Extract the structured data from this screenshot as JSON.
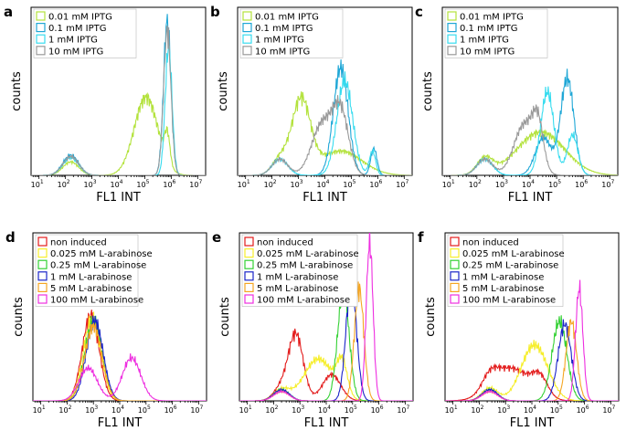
{
  "figure": {
    "colors": {
      "iptg_0.01": "#b3e23c",
      "iptg_0.1": "#1fa7d6",
      "iptg_1": "#37dcef",
      "iptg_10": "#9a9a9a",
      "ara_none": "#e31b1b",
      "ara_0.025": "#f6ee2b",
      "ara_0.25": "#34d134",
      "ara_1": "#1a24c8",
      "ara_5": "#f5a623",
      "ara_100": "#ee2ee0"
    }
  },
  "chart_data": [
    {
      "type": "line",
      "panel": "a",
      "title": "",
      "xlabel": "FL1 INT",
      "ylabel": "counts",
      "xscale": "log",
      "xlim_exp": [
        0.7,
        7.3
      ],
      "ylim": [
        0,
        125
      ],
      "xticks": [
        {
          "base": "10",
          "exp": "1"
        },
        {
          "base": "10",
          "exp": "2"
        },
        {
          "base": "10",
          "exp": "3"
        },
        {
          "base": "10",
          "exp": "4"
        },
        {
          "base": "10",
          "exp": "5"
        },
        {
          "base": "10",
          "exp": "6"
        },
        {
          "base": "10",
          "exp": "7"
        }
      ],
      "legend": [
        "0.01 mM IPTG",
        "0.1 mM IPTG",
        "1 mM IPTG",
        "10 mM IPTG"
      ],
      "series": [
        {
          "name": "0.01 mM IPTG",
          "color_key": "iptg_0.01",
          "peaks": [
            {
              "mu": 2.2,
              "sigma": 0.3,
              "amp": 10
            },
            {
              "mu": 5.05,
              "sigma": 0.45,
              "amp": 58
            },
            {
              "mu": 5.85,
              "sigma": 0.1,
              "amp": 22
            }
          ]
        },
        {
          "name": "0.1 mM IPTG",
          "color_key": "iptg_0.1",
          "peaks": [
            {
              "mu": 2.2,
              "sigma": 0.3,
              "amp": 15
            },
            {
              "mu": 5.85,
              "sigma": 0.14,
              "amp": 115
            }
          ]
        },
        {
          "name": "1 mM IPTG",
          "color_key": "iptg_1",
          "peaks": [
            {
              "mu": 2.2,
              "sigma": 0.3,
              "amp": 13
            },
            {
              "mu": 5.9,
              "sigma": 0.13,
              "amp": 95
            }
          ]
        },
        {
          "name": "10 mM IPTG",
          "color_key": "iptg_10",
          "peaks": [
            {
              "mu": 2.2,
              "sigma": 0.3,
              "amp": 14
            },
            {
              "mu": 5.85,
              "sigma": 0.14,
              "amp": 108
            }
          ]
        }
      ]
    },
    {
      "type": "line",
      "panel": "b",
      "title": "",
      "xlabel": "FL1 INT",
      "ylabel": "counts",
      "xscale": "log",
      "xlim_exp": [
        0.7,
        7.3
      ],
      "ylim": [
        0,
        125
      ],
      "xticks": [
        {
          "base": "10",
          "exp": "1"
        },
        {
          "base": "10",
          "exp": "2"
        },
        {
          "base": "10",
          "exp": "3"
        },
        {
          "base": "10",
          "exp": "4"
        },
        {
          "base": "10",
          "exp": "5"
        },
        {
          "base": "10",
          "exp": "6"
        },
        {
          "base": "10",
          "exp": "7"
        }
      ],
      "legend": [
        "0.01 mM IPTG",
        "0.1 mM IPTG",
        "1 mM IPTG",
        "10 mM IPTG"
      ],
      "series": [
        {
          "name": "0.01 mM IPTG",
          "color_key": "iptg_0.01",
          "peaks": [
            {
              "mu": 2.3,
              "sigma": 0.3,
              "amp": 12
            },
            {
              "mu": 3.1,
              "sigma": 0.35,
              "amp": 55
            },
            {
              "mu": 4.6,
              "sigma": 0.8,
              "amp": 18
            }
          ]
        },
        {
          "name": "0.1 mM IPTG",
          "color_key": "iptg_0.1",
          "peaks": [
            {
              "mu": 2.3,
              "sigma": 0.3,
              "amp": 12
            },
            {
              "mu": 4.6,
              "sigma": 0.28,
              "amp": 80
            },
            {
              "mu": 5.85,
              "sigma": 0.12,
              "amp": 20
            }
          ]
        },
        {
          "name": "1 mM IPTG",
          "color_key": "iptg_1",
          "peaks": [
            {
              "mu": 2.3,
              "sigma": 0.3,
              "amp": 12
            },
            {
              "mu": 4.75,
              "sigma": 0.3,
              "amp": 70
            },
            {
              "mu": 5.8,
              "sigma": 0.12,
              "amp": 18
            }
          ]
        },
        {
          "name": "10 mM IPTG",
          "color_key": "iptg_10",
          "peaks": [
            {
              "mu": 2.3,
              "sigma": 0.3,
              "amp": 12
            },
            {
              "mu": 3.9,
              "sigma": 0.4,
              "amp": 38
            },
            {
              "mu": 4.6,
              "sigma": 0.3,
              "amp": 45
            }
          ]
        }
      ]
    },
    {
      "type": "line",
      "panel": "c",
      "title": "",
      "xlabel": "FL1 INT",
      "ylabel": "counts",
      "xscale": "log",
      "xlim_exp": [
        0.7,
        7.3
      ],
      "ylim": [
        0,
        125
      ],
      "xticks": [
        {
          "base": "10",
          "exp": "1"
        },
        {
          "base": "10",
          "exp": "2"
        },
        {
          "base": "10",
          "exp": "3"
        },
        {
          "base": "10",
          "exp": "4"
        },
        {
          "base": "10",
          "exp": "5"
        },
        {
          "base": "10",
          "exp": "6"
        },
        {
          "base": "10",
          "exp": "7"
        }
      ],
      "legend": [
        "0.01 mM IPTG",
        "0.1 mM IPTG",
        "1 mM IPTG",
        "10 mM IPTG"
      ],
      "series": [
        {
          "name": "0.01 mM IPTG",
          "color_key": "iptg_0.01",
          "peaks": [
            {
              "mu": 2.3,
              "sigma": 0.3,
              "amp": 12
            },
            {
              "mu": 4.4,
              "sigma": 0.9,
              "amp": 32
            }
          ]
        },
        {
          "name": "0.1 mM IPTG",
          "color_key": "iptg_0.1",
          "peaks": [
            {
              "mu": 2.3,
              "sigma": 0.3,
              "amp": 12
            },
            {
              "mu": 4.5,
              "sigma": 0.3,
              "amp": 28
            },
            {
              "mu": 5.4,
              "sigma": 0.25,
              "amp": 72
            }
          ]
        },
        {
          "name": "1 mM IPTG",
          "color_key": "iptg_1",
          "peaks": [
            {
              "mu": 2.3,
              "sigma": 0.3,
              "amp": 12
            },
            {
              "mu": 4.65,
              "sigma": 0.25,
              "amp": 62
            },
            {
              "mu": 5.6,
              "sigma": 0.2,
              "amp": 30
            }
          ]
        },
        {
          "name": "10 mM IPTG",
          "color_key": "iptg_10",
          "peaks": [
            {
              "mu": 2.3,
              "sigma": 0.3,
              "amp": 12
            },
            {
              "mu": 3.8,
              "sigma": 0.4,
              "amp": 38
            },
            {
              "mu": 4.3,
              "sigma": 0.2,
              "amp": 30
            }
          ]
        }
      ]
    },
    {
      "type": "line",
      "panel": "d",
      "title": "",
      "xlabel": "FL1 INT",
      "ylabel": "counts",
      "xscale": "log",
      "xlim_exp": [
        0.7,
        7.3
      ],
      "ylim": [
        0,
        180
      ],
      "xticks": [
        {
          "base": "10",
          "exp": "1"
        },
        {
          "base": "10",
          "exp": "2"
        },
        {
          "base": "10",
          "exp": "3"
        },
        {
          "base": "10",
          "exp": "4"
        },
        {
          "base": "10",
          "exp": "5"
        },
        {
          "base": "10",
          "exp": "6"
        },
        {
          "base": "10",
          "exp": "7"
        }
      ],
      "legend": [
        "non induced",
        "0.025 mM L-arabinose",
        "0.25 mM L-arabinose",
        "1 mM L-arabinose",
        "5 mM L-arabinose",
        "100 mM L-arabinose"
      ],
      "series": [
        {
          "name": "non induced",
          "color_key": "ara_none",
          "peaks": [
            {
              "mu": 2.9,
              "sigma": 0.32,
              "amp": 92
            }
          ]
        },
        {
          "name": "0.025 mM L-arabinose",
          "color_key": "ara_0.025",
          "peaks": [
            {
              "mu": 2.95,
              "sigma": 0.33,
              "amp": 88
            }
          ]
        },
        {
          "name": "0.25 mM L-arabinose",
          "color_key": "ara_0.25",
          "peaks": [
            {
              "mu": 3.0,
              "sigma": 0.33,
              "amp": 85
            }
          ]
        },
        {
          "name": "1 mM L-arabinose",
          "color_key": "ara_1",
          "peaks": [
            {
              "mu": 3.05,
              "sigma": 0.32,
              "amp": 86
            }
          ]
        },
        {
          "name": "5 mM L-arabinose",
          "color_key": "ara_5",
          "peaks": [
            {
              "mu": 3.0,
              "sigma": 0.33,
              "amp": 80
            }
          ]
        },
        {
          "name": "100 mM L-arabinose",
          "color_key": "ara_100",
          "peaks": [
            {
              "mu": 2.8,
              "sigma": 0.35,
              "amp": 35
            },
            {
              "mu": 4.45,
              "sigma": 0.35,
              "amp": 46
            }
          ]
        }
      ]
    },
    {
      "type": "line",
      "panel": "e",
      "title": "",
      "xlabel": "FL1 INT",
      "ylabel": "counts",
      "xscale": "log",
      "xlim_exp": [
        0.7,
        7.3
      ],
      "ylim": [
        0,
        180
      ],
      "xticks": [
        {
          "base": "10",
          "exp": "1"
        },
        {
          "base": "10",
          "exp": "2"
        },
        {
          "base": "10",
          "exp": "3"
        },
        {
          "base": "10",
          "exp": "4"
        },
        {
          "base": "10",
          "exp": "5"
        },
        {
          "base": "10",
          "exp": "6"
        },
        {
          "base": "10",
          "exp": "7"
        }
      ],
      "legend": [
        "non induced",
        "0.025 mM L-arabinose",
        "0.25 mM L-arabinose",
        "1 mM L-arabinose",
        "5 mM L-arabinose",
        "100 mM L-arabinose"
      ],
      "series": [
        {
          "name": "non induced",
          "color_key": "ara_none",
          "peaks": [
            {
              "mu": 2.3,
              "sigma": 0.3,
              "amp": 14
            },
            {
              "mu": 2.85,
              "sigma": 0.28,
              "amp": 70
            },
            {
              "mu": 4.2,
              "sigma": 0.35,
              "amp": 28
            }
          ]
        },
        {
          "name": "0.025 mM L-arabinose",
          "color_key": "ara_0.025",
          "peaks": [
            {
              "mu": 2.3,
              "sigma": 0.3,
              "amp": 12
            },
            {
              "mu": 3.7,
              "sigma": 0.55,
              "amp": 45
            },
            {
              "mu": 4.6,
              "sigma": 0.2,
              "amp": 35
            }
          ]
        },
        {
          "name": "0.25 mM L-arabinose",
          "color_key": "ara_0.25",
          "peaks": [
            {
              "mu": 2.3,
              "sigma": 0.3,
              "amp": 12
            },
            {
              "mu": 4.65,
              "sigma": 0.22,
              "amp": 118
            }
          ]
        },
        {
          "name": "1 mM L-arabinose",
          "color_key": "ara_1",
          "peaks": [
            {
              "mu": 2.3,
              "sigma": 0.3,
              "amp": 12
            },
            {
              "mu": 4.95,
              "sigma": 0.2,
              "amp": 128
            }
          ]
        },
        {
          "name": "5 mM L-arabinose",
          "color_key": "ara_5",
          "peaks": [
            {
              "mu": 2.3,
              "sigma": 0.3,
              "amp": 10
            },
            {
              "mu": 5.25,
              "sigma": 0.18,
              "amp": 120
            }
          ]
        },
        {
          "name": "100 mM L-arabinose",
          "color_key": "ara_100",
          "peaks": [
            {
              "mu": 2.3,
              "sigma": 0.3,
              "amp": 10
            },
            {
              "mu": 5.65,
              "sigma": 0.13,
              "amp": 170
            }
          ]
        }
      ]
    },
    {
      "type": "line",
      "panel": "f",
      "title": "",
      "xlabel": "FL1 INT",
      "ylabel": "counts",
      "xscale": "log",
      "xlim_exp": [
        0.7,
        7.3
      ],
      "ylim": [
        0,
        180
      ],
      "xticks": [
        {
          "base": "10",
          "exp": "1"
        },
        {
          "base": "10",
          "exp": "2"
        },
        {
          "base": "10",
          "exp": "3"
        },
        {
          "base": "10",
          "exp": "4"
        },
        {
          "base": "10",
          "exp": "5"
        },
        {
          "base": "10",
          "exp": "6"
        },
        {
          "base": "10",
          "exp": "7"
        }
      ],
      "legend": [
        "non induced",
        "0.025 mM L-arabinose",
        "0.25 mM L-arabinose",
        "1 mM L-arabinose",
        "5 mM L-arabinose",
        "100 mM L-arabinose"
      ],
      "series": [
        {
          "name": "non induced",
          "color_key": "ara_none",
          "peaks": [
            {
              "mu": 2.4,
              "sigma": 0.3,
              "amp": 15
            },
            {
              "mu": 3.2,
              "sigma": 0.7,
              "amp": 35
            },
            {
              "mu": 4.3,
              "sigma": 0.3,
              "amp": 20
            }
          ]
        },
        {
          "name": "0.025 mM L-arabinose",
          "color_key": "ara_0.025",
          "peaks": [
            {
              "mu": 2.4,
              "sigma": 0.3,
              "amp": 14
            },
            {
              "mu": 4.1,
              "sigma": 0.5,
              "amp": 60
            }
          ]
        },
        {
          "name": "0.25 mM L-arabinose",
          "color_key": "ara_0.25",
          "peaks": [
            {
              "mu": 2.4,
              "sigma": 0.3,
              "amp": 12
            },
            {
              "mu": 5.05,
              "sigma": 0.28,
              "amp": 85
            }
          ]
        },
        {
          "name": "1 mM L-arabinose",
          "color_key": "ara_1",
          "peaks": [
            {
              "mu": 2.4,
              "sigma": 0.3,
              "amp": 12
            },
            {
              "mu": 5.25,
              "sigma": 0.25,
              "amp": 82
            }
          ]
        },
        {
          "name": "5 mM L-arabinose",
          "color_key": "ara_5",
          "peaks": [
            {
              "mu": 2.4,
              "sigma": 0.3,
              "amp": 10
            },
            {
              "mu": 5.5,
              "sigma": 0.2,
              "amp": 85
            }
          ]
        },
        {
          "name": "100 mM L-arabinose",
          "color_key": "ara_100",
          "peaks": [
            {
              "mu": 2.4,
              "sigma": 0.3,
              "amp": 10
            },
            {
              "mu": 5.8,
              "sigma": 0.14,
              "amp": 120
            }
          ]
        }
      ]
    }
  ]
}
